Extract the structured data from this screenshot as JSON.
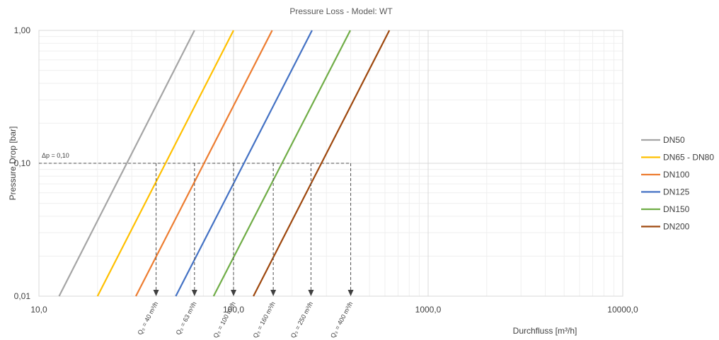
{
  "chart_data": {
    "type": "line",
    "title": "Pressure Loss - Model: WT",
    "xlabel": "Durchfluss [m³/h]",
    "ylabel": "Pressure Drop [bar]",
    "xscale": "log",
    "yscale": "log",
    "xlim": [
      10,
      10000
    ],
    "ylim": [
      0.01,
      1
    ],
    "x_ticks": [
      {
        "value": 10,
        "label": "10,0"
      },
      {
        "value": 100,
        "label": "100,0"
      },
      {
        "value": 1000,
        "label": "1000,0"
      },
      {
        "value": 10000,
        "label": "10000,0"
      }
    ],
    "y_ticks": [
      {
        "value": 0.01,
        "label": "0,01"
      },
      {
        "value": 0.1,
        "label": "0,10"
      },
      {
        "value": 1,
        "label": "1,00"
      }
    ],
    "grid": true,
    "legend_position": "right",
    "series": [
      {
        "name": "DN50",
        "color": "#a5a5a5",
        "x": [
          12.7,
          63
        ],
        "y": [
          0.01,
          1.0
        ]
      },
      {
        "name": "DN65 - DN80",
        "color": "#ffc000",
        "x": [
          20,
          100
        ],
        "y": [
          0.01,
          1.0
        ]
      },
      {
        "name": "DN100",
        "color": "#ed7d31",
        "x": [
          31.5,
          158
        ],
        "y": [
          0.01,
          1.0
        ]
      },
      {
        "name": "DN125",
        "color": "#4472c4",
        "x": [
          50.5,
          253
        ],
        "y": [
          0.01,
          1.0
        ]
      },
      {
        "name": "DN150",
        "color": "#70ad47",
        "x": [
          79,
          398
        ],
        "y": [
          0.01,
          1.0
        ]
      },
      {
        "name": "DN200",
        "color": "#9e480e",
        "x": [
          126.5,
          632
        ],
        "y": [
          0.01,
          1.0
        ]
      }
    ],
    "reference_line": {
      "label": "Δp = 0,10",
      "y": 0.1,
      "x_end": 400
    },
    "markers": [
      {
        "x": 40,
        "label": "Q₃ = 40 m³/h"
      },
      {
        "x": 63,
        "label": "Q₃ = 63 m³/h"
      },
      {
        "x": 100,
        "label": "Q₃ = 100 m³/h"
      },
      {
        "x": 160,
        "label": "Q₃ = 160 m³/h"
      },
      {
        "x": 250,
        "label": "Q₃ = 250 m³/h"
      },
      {
        "x": 400,
        "label": "Q₃ = 400 m³/h"
      }
    ]
  }
}
